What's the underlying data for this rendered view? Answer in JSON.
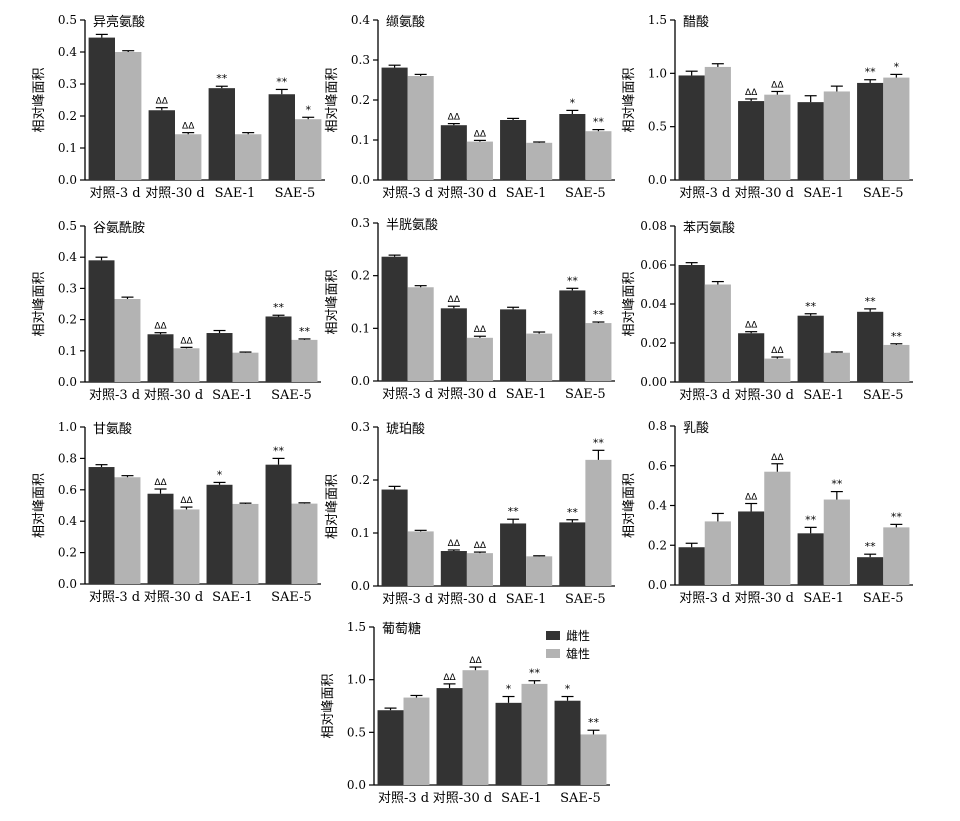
{
  "figure": {
    "group_labels": [
      "对照-3 d",
      "对照-30 d",
      "SAE-1",
      "SAE-5"
    ],
    "ylabel": "相对峰面积",
    "legend": [
      {
        "name": "雌性",
        "color": "#333333"
      },
      {
        "name": "雄性",
        "color": "#b3b3b3"
      }
    ],
    "colors": {
      "female": "#333333",
      "male": "#b3b3b3",
      "axis": "#000000"
    }
  },
  "chart_data": [
    {
      "type": "bar",
      "title": "异亮氨酸",
      "ylabel": "相对峰面积",
      "categories": [
        "对照-3 d",
        "对照-30 d",
        "SAE-1",
        "SAE-5"
      ],
      "ylim": [
        0,
        0.5
      ],
      "yticks": [
        "0.0",
        "0.1",
        "0.2",
        "0.3",
        "0.4",
        "0.5"
      ],
      "series": [
        {
          "name": "雌性",
          "values": [
            0.445,
            0.218,
            0.287,
            0.268
          ],
          "errors": [
            0.01,
            0.008,
            0.006,
            0.015
          ],
          "marks": [
            "",
            "ΔΔ",
            "**",
            "**"
          ]
        },
        {
          "name": "雄性",
          "values": [
            0.4,
            0.143,
            0.143,
            0.19
          ],
          "errors": [
            0.004,
            0.005,
            0.005,
            0.006
          ],
          "marks": [
            "",
            "ΔΔ",
            "",
            "*"
          ]
        }
      ]
    },
    {
      "type": "bar",
      "title": "缬氨酸",
      "ylabel": "相对峰面积",
      "categories": [
        "对照-3 d",
        "对照-30 d",
        "SAE-1",
        "SAE-5"
      ],
      "ylim": [
        0,
        0.4
      ],
      "yticks": [
        "0.0",
        "0.1",
        "0.2",
        "0.3",
        "0.4"
      ],
      "series": [
        {
          "name": "雌性",
          "values": [
            0.281,
            0.137,
            0.15,
            0.165
          ],
          "errors": [
            0.006,
            0.004,
            0.004,
            0.009
          ],
          "marks": [
            "",
            "ΔΔ",
            "",
            "*"
          ]
        },
        {
          "name": "雄性",
          "values": [
            0.26,
            0.096,
            0.093,
            0.122
          ],
          "errors": [
            0.004,
            0.003,
            0.002,
            0.004
          ],
          "marks": [
            "",
            "ΔΔ",
            "",
            "**"
          ]
        }
      ]
    },
    {
      "type": "bar",
      "title": "醋酸",
      "ylabel": "相对峰面积",
      "categories": [
        "对照-3 d",
        "对照-30 d",
        "SAE-1",
        "SAE-5"
      ],
      "ylim": [
        0,
        1.5
      ],
      "yticks": [
        "0.0",
        "0.5",
        "1.0",
        "1.5"
      ],
      "series": [
        {
          "name": "雌性",
          "values": [
            0.98,
            0.74,
            0.73,
            0.91
          ],
          "errors": [
            0.04,
            0.02,
            0.06,
            0.03
          ],
          "marks": [
            "",
            "ΔΔ",
            "",
            "**"
          ]
        },
        {
          "name": "雄性",
          "values": [
            1.06,
            0.8,
            0.83,
            0.96
          ],
          "errors": [
            0.03,
            0.03,
            0.05,
            0.03
          ],
          "marks": [
            "",
            "ΔΔ",
            "",
            "*"
          ]
        }
      ]
    },
    {
      "type": "bar",
      "title": "谷氨酰胺",
      "ylabel": "相对峰面积",
      "categories": [
        "对照-3 d",
        "对照-30 d",
        "SAE-1",
        "SAE-5"
      ],
      "ylim": [
        0,
        0.5
      ],
      "yticks": [
        "0.0",
        "0.1",
        "0.2",
        "0.3",
        "0.4",
        "0.5"
      ],
      "series": [
        {
          "name": "雌性",
          "values": [
            0.39,
            0.153,
            0.157,
            0.21
          ],
          "errors": [
            0.01,
            0.005,
            0.008,
            0.004
          ],
          "marks": [
            "",
            "ΔΔ",
            "",
            "**"
          ]
        },
        {
          "name": "雄性",
          "values": [
            0.266,
            0.108,
            0.094,
            0.135
          ],
          "errors": [
            0.006,
            0.003,
            0.002,
            0.003
          ],
          "marks": [
            "",
            "ΔΔ",
            "",
            "**"
          ]
        }
      ]
    },
    {
      "type": "bar",
      "title": "半胱氨酸",
      "ylabel": "相对峰面积",
      "categories": [
        "对照-3 d",
        "对照-30 d",
        "SAE-1",
        "SAE-5"
      ],
      "ylim": [
        0,
        0.3
      ],
      "yticks": [
        "0.0",
        "0.1",
        "0.2",
        "0.3"
      ],
      "series": [
        {
          "name": "雌性",
          "values": [
            0.236,
            0.138,
            0.136,
            0.172
          ],
          "errors": [
            0.003,
            0.004,
            0.004,
            0.004
          ],
          "marks": [
            "",
            "ΔΔ",
            "",
            "**"
          ]
        },
        {
          "name": "雄性",
          "values": [
            0.178,
            0.082,
            0.09,
            0.11
          ],
          "errors": [
            0.003,
            0.003,
            0.003,
            0.002
          ],
          "marks": [
            "",
            "ΔΔ",
            "",
            "**"
          ]
        }
      ]
    },
    {
      "type": "bar",
      "title": "苯丙氨酸",
      "ylabel": "相对峰面积",
      "categories": [
        "对照-3 d",
        "对照-30 d",
        "SAE-1",
        "SAE-5"
      ],
      "ylim": [
        0,
        0.08
      ],
      "yticks": [
        "0.00",
        "0.02",
        "0.04",
        "0.06",
        "0.08"
      ],
      "series": [
        {
          "name": "雌性",
          "values": [
            0.06,
            0.025,
            0.034,
            0.036
          ],
          "errors": [
            0.0012,
            0.0008,
            0.001,
            0.0015
          ],
          "marks": [
            "",
            "ΔΔ",
            "**",
            "**"
          ]
        },
        {
          "name": "雄性",
          "values": [
            0.05,
            0.012,
            0.015,
            0.019
          ],
          "errors": [
            0.0015,
            0.0008,
            0.0004,
            0.0006
          ],
          "marks": [
            "",
            "ΔΔ",
            "",
            "**"
          ]
        }
      ]
    },
    {
      "type": "bar",
      "title": "甘氨酸",
      "ylabel": "相对峰面积",
      "categories": [
        "对照-3 d",
        "对照-30 d",
        "SAE-1",
        "SAE-5"
      ],
      "ylim": [
        0,
        1.0
      ],
      "yticks": [
        "0.0",
        "0.2",
        "0.4",
        "0.6",
        "0.8",
        "1.0"
      ],
      "series": [
        {
          "name": "雌性",
          "values": [
            0.745,
            0.575,
            0.632,
            0.76
          ],
          "errors": [
            0.015,
            0.03,
            0.015,
            0.04
          ],
          "marks": [
            "",
            "ΔΔ",
            "*",
            "**"
          ]
        },
        {
          "name": "雄性",
          "values": [
            0.68,
            0.475,
            0.51,
            0.512
          ],
          "errors": [
            0.01,
            0.015,
            0.005,
            0.005
          ],
          "marks": [
            "",
            "ΔΔ",
            "",
            ""
          ]
        }
      ]
    },
    {
      "type": "bar",
      "title": "琥珀酸",
      "ylabel": "相对峰面积",
      "categories": [
        "对照-3 d",
        "对照-30 d",
        "SAE-1",
        "SAE-5"
      ],
      "ylim": [
        0,
        0.3
      ],
      "yticks": [
        "0.0",
        "0.1",
        "0.2",
        "0.3"
      ],
      "series": [
        {
          "name": "雌性",
          "values": [
            0.182,
            0.066,
            0.118,
            0.12
          ],
          "errors": [
            0.006,
            0.002,
            0.008,
            0.005
          ],
          "marks": [
            "",
            "ΔΔ",
            "**",
            "**"
          ]
        },
        {
          "name": "雄性",
          "values": [
            0.103,
            0.062,
            0.056,
            0.238
          ],
          "errors": [
            0.002,
            0.002,
            0.001,
            0.018
          ],
          "marks": [
            "",
            "ΔΔ",
            "",
            "**"
          ]
        }
      ]
    },
    {
      "type": "bar",
      "title": "乳酸",
      "ylabel": "相对峰面积",
      "categories": [
        "对照-3 d",
        "对照-30 d",
        "SAE-1",
        "SAE-5"
      ],
      "ylim": [
        0,
        0.8
      ],
      "yticks": [
        "0.0",
        "0.2",
        "0.4",
        "0.6",
        "0.8"
      ],
      "series": [
        {
          "name": "雌性",
          "values": [
            0.19,
            0.37,
            0.26,
            0.14
          ],
          "errors": [
            0.02,
            0.04,
            0.03,
            0.015
          ],
          "marks": [
            "",
            "ΔΔ",
            "**",
            "**"
          ]
        },
        {
          "name": "雄性",
          "values": [
            0.32,
            0.57,
            0.43,
            0.29
          ],
          "errors": [
            0.04,
            0.04,
            0.04,
            0.015
          ],
          "marks": [
            "",
            "ΔΔ",
            "**",
            "**"
          ]
        }
      ]
    },
    {
      "type": "bar",
      "title": "葡萄糖",
      "ylabel": "相对峰面积",
      "categories": [
        "对照-3 d",
        "对照-30 d",
        "SAE-1",
        "SAE-5"
      ],
      "ylim": [
        0,
        1.5
      ],
      "yticks": [
        "0.0",
        "0.5",
        "1.0",
        "1.5"
      ],
      "legend": [
        "雌性",
        "雄性"
      ],
      "series": [
        {
          "name": "雌性",
          "values": [
            0.71,
            0.92,
            0.78,
            0.8
          ],
          "errors": [
            0.02,
            0.04,
            0.06,
            0.04
          ],
          "marks": [
            "",
            "ΔΔ",
            "*",
            "*"
          ]
        },
        {
          "name": "雄性",
          "values": [
            0.83,
            1.09,
            0.96,
            0.48
          ],
          "errors": [
            0.02,
            0.03,
            0.03,
            0.04
          ],
          "marks": [
            "",
            "ΔΔ",
            "**",
            "**"
          ]
        }
      ]
    }
  ]
}
